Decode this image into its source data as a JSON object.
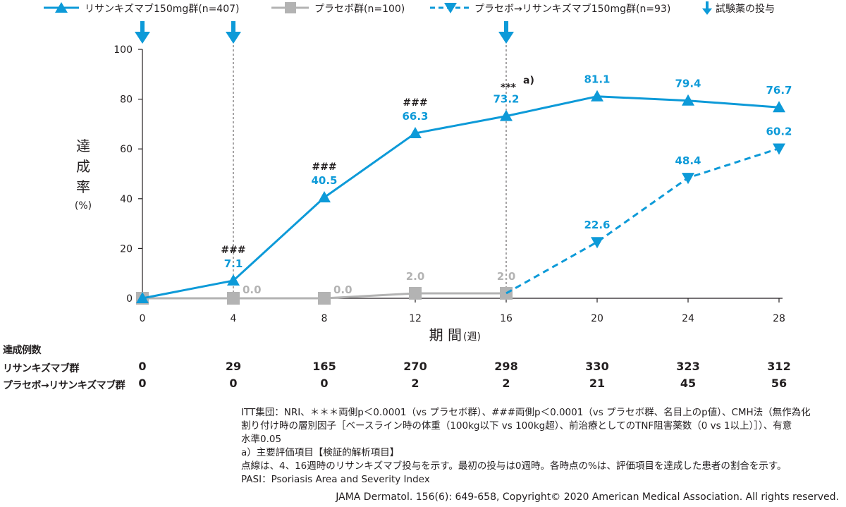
{
  "chart_data": {
    "type": "line",
    "x": [
      0,
      4,
      8,
      12,
      16,
      20,
      24,
      28
    ],
    "xlabel": "期 間",
    "xlabel_unit": "(週)",
    "ylabel_chars": [
      "達",
      "成",
      "率"
    ],
    "ylabel_unit": "(%)",
    "ylim": [
      0,
      100
    ],
    "yticks": [
      0,
      20,
      40,
      60,
      80,
      100
    ],
    "grid": false,
    "legend_position": "top",
    "series": [
      {
        "name": "リサンキズマブ150mg群(n=407)",
        "color": "#0d9ad8",
        "marker": "triangle-up",
        "dash": "solid",
        "x": [
          0,
          4,
          8,
          12,
          16,
          20,
          24,
          28
        ],
        "values": [
          0.0,
          7.1,
          40.5,
          66.3,
          73.2,
          81.1,
          79.4,
          76.7
        ],
        "labels": [
          "",
          "7.1",
          "40.5",
          "66.3",
          "73.2",
          "81.1",
          "79.4",
          "76.7"
        ]
      },
      {
        "name": "プラセボ群(n=100)",
        "color": "#b3b3b3",
        "marker": "square",
        "dash": "solid",
        "x": [
          0,
          4,
          8,
          12,
          16
        ],
        "values": [
          0.0,
          0.0,
          0.0,
          2.0,
          2.0
        ],
        "labels": [
          "",
          "0.0",
          "0.0",
          "2.0",
          "2.0"
        ]
      },
      {
        "name": "プラセボ→リサンキズマブ150mg群(n=93)",
        "color": "#0d9ad8",
        "marker": "triangle-down",
        "dash": "dashed",
        "x": [
          16,
          20,
          24,
          28
        ],
        "values": [
          2.0,
          22.6,
          48.4,
          60.2
        ],
        "labels": [
          "",
          "22.6",
          "48.4",
          "60.2"
        ]
      }
    ],
    "dosing_legend": "試験薬の投与",
    "dosing_weeks": [
      0,
      4,
      16
    ],
    "significance": [
      {
        "x": 4,
        "y": 7.1,
        "text": "###"
      },
      {
        "x": 8,
        "y": 40.5,
        "text": "###"
      },
      {
        "x": 12,
        "y": 66.3,
        "text": "###"
      },
      {
        "x": 16,
        "y": 73.2,
        "text": "***",
        "sup": "a)"
      }
    ]
  },
  "counts": {
    "header": "達成例数",
    "rows": [
      {
        "label": "リサンキズマブ群",
        "values": [
          "0",
          "29",
          "165",
          "270",
          "298",
          "330",
          "323",
          "312"
        ]
      },
      {
        "label": "プラセボ→リサンキズマブ群",
        "values": [
          "0",
          "0",
          "0",
          "2",
          "2",
          "21",
          "45",
          "56"
        ]
      }
    ]
  },
  "notes": [
    "ITT集団：NRI、＊＊＊両側p＜0.0001（vs プラセボ群）、###両側p＜0.0001（vs プラセボ群、名目上のp値）、CMH法（無作為化",
    "割り付け時の層別因子［ベースライン時の体重（100kg以下 vs 100kg超）、前治療としてのTNF阻害薬数（0 vs 1以上）］）、有意",
    "水準0.05",
    "a）主要評価項目【検証的解析項目】",
    "点線は、4、16週時のリサンキズマブ投与を示す。最初の投与は0週時。各時点の%は、評価項目を達成した患者の割合を示す。",
    "PASI：Psoriasis Area and Severity Index"
  ],
  "citation": "JAMA Dermatol. 156(6): 649-658, Copyright© 2020 American Medical Association. All rights reserved."
}
